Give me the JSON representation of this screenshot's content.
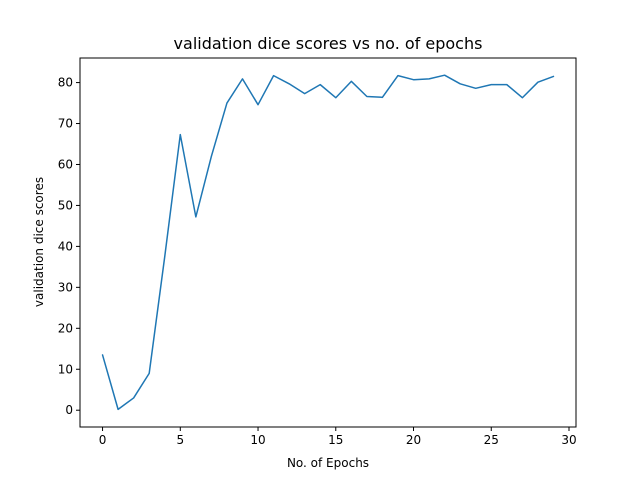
{
  "chart_data": {
    "type": "line",
    "title": "validation dice scores vs no. of epochs",
    "xlabel": "No. of Epochs",
    "ylabel": "validation dice scores",
    "xlim": [
      -1.45,
      30.45
    ],
    "ylim": [
      -4.1,
      86.0
    ],
    "xticks": [
      0,
      5,
      10,
      15,
      20,
      25,
      30
    ],
    "yticks": [
      0,
      10,
      20,
      30,
      40,
      50,
      60,
      70,
      80
    ],
    "grid": false,
    "series": [
      {
        "color": "#1f77b4",
        "x": [
          0,
          1,
          2,
          3,
          4,
          5,
          6,
          7,
          8,
          9,
          10,
          11,
          12,
          13,
          14,
          15,
          16,
          17,
          18,
          19,
          20,
          21,
          22,
          23,
          24,
          25,
          26,
          27,
          28,
          29
        ],
        "y": [
          13.5,
          0.2,
          3.0,
          9.0,
          37.5,
          67.3,
          47.2,
          62.0,
          75.0,
          80.9,
          74.6,
          81.7,
          79.7,
          77.3,
          79.5,
          76.3,
          80.3,
          76.6,
          76.4,
          81.7,
          80.7,
          80.9,
          81.8,
          79.7,
          78.6,
          79.5,
          79.5,
          76.3,
          80.1,
          81.5
        ]
      }
    ]
  }
}
